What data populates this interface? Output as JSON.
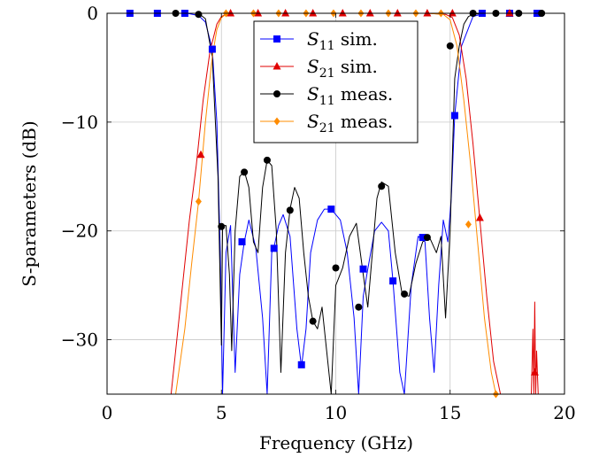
{
  "chart_data": {
    "type": "line",
    "xlabel": "Frequency (GHz)",
    "ylabel": "S-parameters (dB)",
    "xlim": [
      0,
      20
    ],
    "ylim": [
      -35,
      0
    ],
    "x_ticks": [
      "0",
      "5",
      "10",
      "15",
      "20"
    ],
    "y_ticks": [
      "0",
      "−10",
      "−20",
      "−30"
    ],
    "grid": true,
    "legend_position": "top-center",
    "series": [
      {
        "name": "S11 sim.",
        "label_main": "S",
        "label_sub": "11",
        "label_rest": " sim.",
        "color": "#0000ff",
        "marker": "square",
        "x": [
          0,
          1.0,
          2.0,
          3.0,
          3.5,
          4.0,
          4.3,
          4.6,
          4.8,
          4.95,
          5.05,
          5.2,
          5.4,
          5.6,
          5.8,
          6.0,
          6.2,
          6.5,
          6.8,
          7.0,
          7.2,
          7.3,
          7.5,
          7.7,
          8.0,
          8.3,
          8.5,
          8.7,
          8.9,
          9.2,
          9.5,
          9.8,
          10.2,
          10.5,
          10.8,
          11.0,
          11.2,
          11.4,
          11.7,
          12.0,
          12.3,
          12.5,
          12.8,
          13.0,
          13.3,
          13.6,
          13.9,
          14.1,
          14.3,
          14.5,
          14.7,
          14.9,
          15.05,
          15.2,
          15.5,
          16.0,
          16.5,
          17.0,
          17.5,
          18.0,
          18.5,
          19.0,
          19.5,
          20
        ],
        "y": [
          0,
          0,
          0,
          0,
          0,
          -0.2,
          -0.8,
          -3.3,
          -10,
          -22,
          -35,
          -22,
          -19.5,
          -33,
          -24,
          -21,
          -19,
          -21.5,
          -28,
          -35,
          -22,
          -21.5,
          -19.5,
          -18.5,
          -20.5,
          -29,
          -32.5,
          -29,
          -22,
          -19,
          -18,
          -18,
          -19,
          -22,
          -28,
          -35,
          -26,
          -23.5,
          -20,
          -19.2,
          -20,
          -24.6,
          -33,
          -35,
          -25,
          -20.5,
          -21,
          -28,
          -33,
          -25,
          -19,
          -21,
          -17,
          -9.4,
          -3.0,
          -0.3,
          0,
          0,
          0,
          0,
          0,
          0,
          0,
          0
        ],
        "markers_x": [
          1.0,
          2.2,
          3.4,
          4.6,
          5.9,
          7.3,
          8.5,
          9.8,
          11.2,
          12.5,
          13.8,
          15.2,
          16.4,
          17.6,
          18.8
        ],
        "markers_y": [
          0,
          0,
          0,
          -3.3,
          -21.0,
          -21.6,
          -32.3,
          -18.0,
          -23.5,
          -24.6,
          -20.6,
          -9.4,
          0,
          0,
          0
        ]
      },
      {
        "name": "S21 sim.",
        "label_main": "S",
        "label_sub": "21",
        "label_rest": " sim.",
        "color": "#e00000",
        "marker": "triangle",
        "x": [
          2.8,
          3.2,
          3.6,
          3.9,
          4.2,
          4.5,
          4.8,
          5.0,
          5.2,
          5.5,
          6.0,
          7.0,
          8.0,
          9.0,
          10.0,
          11.0,
          12.0,
          13.0,
          14.0,
          14.8,
          15.1,
          15.4,
          15.7,
          16.0,
          16.3,
          16.6,
          16.9,
          17.2
        ],
        "y": [
          -35,
          -27,
          -19,
          -14,
          -8,
          -3.5,
          -1,
          -0.3,
          -0.1,
          0,
          0,
          0,
          0,
          0,
          0,
          0,
          0,
          0,
          0,
          -0.1,
          -0.4,
          -2,
          -6,
          -12,
          -19,
          -26,
          -32,
          -35
        ],
        "markers_x": [
          4.1,
          5.4,
          6.6,
          7.8,
          9.0,
          10.3,
          11.5,
          12.7,
          14.0,
          15.1,
          16.3,
          17.6,
          18.7
        ],
        "markers_y": [
          -13.0,
          0,
          0,
          0,
          0,
          0,
          0,
          0,
          0,
          0,
          -18.8,
          0,
          -33.0
        ],
        "spike_x": [
          18.55,
          18.62,
          18.66,
          18.7,
          18.74,
          18.78,
          18.85
        ],
        "spike_y": [
          -35,
          -29,
          -35,
          -26.5,
          -35,
          -31,
          -35
        ]
      },
      {
        "name": "S11 meas.",
        "label_main": "S",
        "label_sub": "11",
        "label_rest": " meas.",
        "color": "#000000",
        "marker": "circle",
        "x": [
          0,
          1.5,
          3.0,
          3.5,
          4.0,
          4.3,
          4.6,
          4.85,
          5.0,
          5.05,
          5.2,
          5.35,
          5.45,
          5.6,
          5.8,
          6.0,
          6.2,
          6.4,
          6.6,
          6.8,
          7.0,
          7.2,
          7.4,
          7.6,
          7.8,
          8.0,
          8.2,
          8.4,
          8.6,
          8.8,
          9.0,
          9.2,
          9.4,
          9.6,
          9.8,
          10.0,
          10.3,
          10.6,
          10.9,
          11.2,
          11.4,
          11.6,
          11.8,
          12.0,
          12.3,
          12.6,
          12.9,
          13.2,
          13.5,
          13.8,
          14.1,
          14.4,
          14.6,
          14.8,
          15.0,
          15.2,
          15.4,
          15.6,
          15.8,
          16.0,
          16.5,
          17.0,
          18.0,
          19.0,
          20
        ],
        "y": [
          0,
          0,
          0,
          0,
          0,
          -0.5,
          -4,
          -15,
          -30.5,
          -19.5,
          -19.5,
          -24,
          -31,
          -20,
          -15,
          -14.5,
          -16,
          -21,
          -22,
          -16,
          -13.5,
          -14,
          -20,
          -33,
          -22,
          -18,
          -16,
          -17,
          -22,
          -26,
          -28.3,
          -29,
          -27,
          -31,
          -35,
          -25,
          -23.4,
          -20.5,
          -19.3,
          -24,
          -27,
          -22,
          -17,
          -15.5,
          -15.9,
          -22,
          -25.8,
          -26,
          -23,
          -21,
          -20.6,
          -22,
          -20.5,
          -28,
          -20,
          -6,
          -3.0,
          -1,
          -0.3,
          -0.1,
          0,
          0,
          0,
          0,
          0
        ],
        "markers_x": [
          3.0,
          4.0,
          5.0,
          6.0,
          7.0,
          8.0,
          9.0,
          10.0,
          11.0,
          12.0,
          13.0,
          14.0,
          15.0,
          16.0,
          17.0,
          18.0,
          19.0
        ],
        "markers_y": [
          0,
          -0.1,
          -19.6,
          -14.6,
          -13.5,
          -18.1,
          -28.3,
          -23.4,
          -27.0,
          -15.9,
          -25.8,
          -20.6,
          -3.0,
          0,
          0,
          0,
          0
        ]
      },
      {
        "name": "S21 meas.",
        "label_main": "S",
        "label_sub": "21",
        "label_rest": " meas.",
        "color": "#ff8c00",
        "marker": "diamond",
        "x": [
          3.0,
          3.4,
          3.7,
          4.0,
          4.3,
          4.6,
          4.8,
          5.0,
          5.2,
          5.5,
          6.0,
          7.0,
          8.0,
          9.0,
          10.0,
          11.0,
          12.0,
          13.0,
          14.0,
          14.7,
          15.0,
          15.3,
          15.6,
          15.9,
          16.2,
          16.5,
          16.8,
          17.0
        ],
        "y": [
          -35,
          -29,
          -23,
          -17.3,
          -10,
          -4,
          -1.5,
          -0.4,
          -0.1,
          0,
          0,
          0,
          0,
          0,
          0,
          0,
          0,
          0,
          0,
          -0.1,
          -0.6,
          -3,
          -8,
          -14,
          -21,
          -28,
          -33,
          -35
        ],
        "markers_x": [
          4.0,
          5.2,
          6.4,
          7.5,
          8.7,
          9.9,
          11.1,
          12.3,
          13.5,
          14.6,
          15.8,
          17.0
        ],
        "markers_y": [
          -17.3,
          0,
          0,
          0,
          0,
          0,
          0,
          0,
          0,
          0,
          -19.4,
          -35
        ]
      }
    ]
  }
}
